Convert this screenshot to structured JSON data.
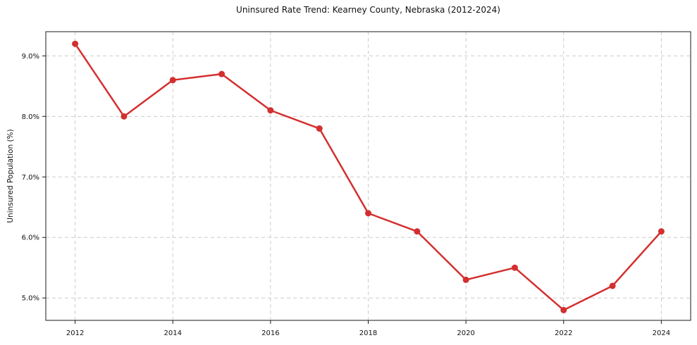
{
  "page": {
    "background": "#ffffff"
  },
  "chart_data": {
    "type": "line",
    "title": "Uninsured Rate Trend: Kearney County, Nebraska (2012-2024)",
    "xlabel": "",
    "ylabel": "Uninsured Population (%)",
    "x": [
      2012,
      2013,
      2014,
      2015,
      2016,
      2017,
      2018,
      2019,
      2020,
      2021,
      2022,
      2023,
      2024
    ],
    "series": [
      {
        "values": [
          9.2,
          8.0,
          8.6,
          8.7,
          8.1,
          7.8,
          6.4,
          6.1,
          5.3,
          5.5,
          4.8,
          5.2,
          6.1
        ],
        "color": "#d32f2f",
        "marker": "circle",
        "line_width": 2.5,
        "marker_radius": 4.5
      }
    ],
    "xticks": [
      2012,
      2014,
      2016,
      2018,
      2020,
      2022,
      2024
    ],
    "xtick_labels": [
      "2012",
      "2014",
      "2016",
      "2018",
      "2020",
      "2022",
      "2024"
    ],
    "yticks": [
      5.0,
      6.0,
      7.0,
      8.0,
      9.0
    ],
    "ytick_labels": [
      "5.0%",
      "6.0%",
      "7.0%",
      "8.0%",
      "9.0%"
    ],
    "xlim": [
      2011.4,
      2024.6
    ],
    "ylim": [
      4.63,
      9.4
    ],
    "grid": true,
    "grid_on_xticks_only": true,
    "legend": "none",
    "colors": {
      "grid": "#cccccc",
      "axis": "#1a1a1a",
      "text": "#111111",
      "background": "#ffffff"
    }
  }
}
